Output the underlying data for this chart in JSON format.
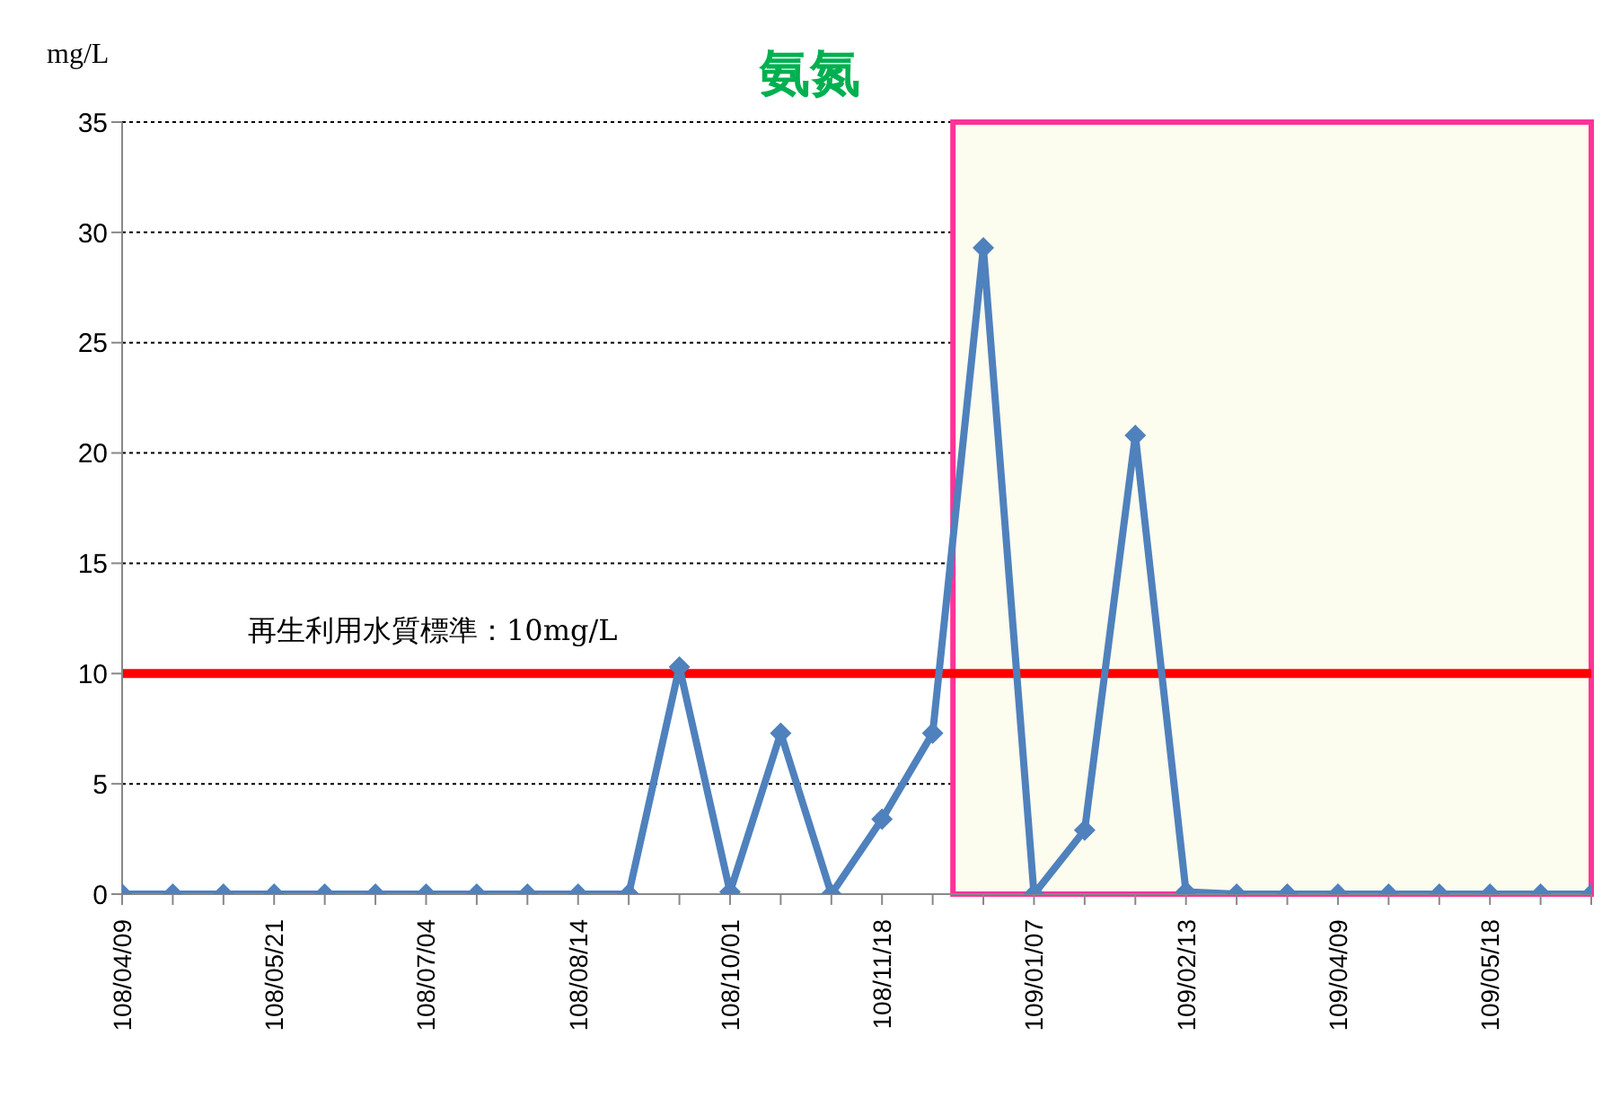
{
  "chart_data": {
    "type": "line",
    "title": "氨氮",
    "ylabel": "mg/L",
    "categories": [
      "108/04/09",
      null,
      null,
      "108/05/21",
      null,
      null,
      "108/07/04",
      null,
      null,
      "108/08/14",
      null,
      null,
      "108/10/01",
      null,
      null,
      "108/11/18",
      null,
      null,
      "109/01/07",
      null,
      null,
      "109/02/13",
      null,
      null,
      "109/04/09",
      null,
      null,
      "109/05/18",
      null,
      null
    ],
    "series": [
      {
        "color": "#4f81bd",
        "values": [
          0,
          0,
          0,
          0,
          0,
          0,
          0,
          0,
          0,
          0,
          0,
          10.3,
          0.1,
          7.3,
          0,
          3.4,
          7.3,
          29.3,
          0,
          2.9,
          20.8,
          0.1,
          0,
          0,
          0,
          0,
          0,
          0,
          0,
          0
        ]
      }
    ],
    "ylim": [
      0,
      35
    ],
    "yticks": [
      0,
      5,
      10,
      15,
      20,
      25,
      30,
      35
    ],
    "grid": "y",
    "marker": "diamond",
    "line_style": "solid",
    "legend": false,
    "ref_lines": [
      {
        "axis": "y",
        "value": 10,
        "label": "再生利用水質標準：10mg/L",
        "color": "#ff0000"
      }
    ]
  }
}
